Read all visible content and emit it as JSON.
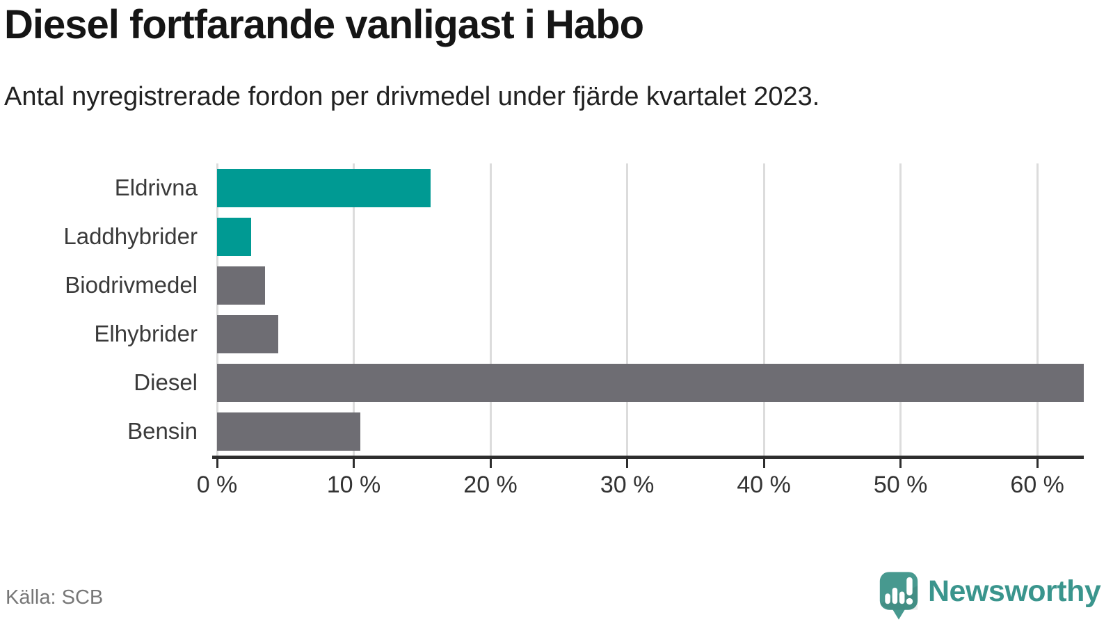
{
  "header": {
    "title": "Diesel fortfarande vanligast i Habo",
    "subtitle": "Antal nyregistrerade fordon per drivmedel under fjärde kvartalet 2023."
  },
  "footer": {
    "source": "Källa: SCB",
    "brand": "Newsworthy"
  },
  "colors": {
    "accent_teal": "#009a93",
    "neutral_gray": "#6e6d73",
    "axis": "#2e2e2e",
    "gridline": "#dcdcdc",
    "brand_teal": "#3a958d"
  },
  "icons": {
    "brand_logo": "newsworthy-speech-bubble-bar-chart-icon"
  },
  "chart_data": {
    "type": "bar",
    "orientation": "horizontal",
    "title": "Diesel fortfarande vanligast i Habo",
    "subtitle": "Antal nyregistrerade fordon per drivmedel under fjärde kvartalet 2023.",
    "xlabel": "",
    "ylabel": "",
    "unit": "%",
    "xlim": [
      0,
      63.4
    ],
    "grid": true,
    "legend": false,
    "categories": [
      "Eldrivna",
      "Laddhybrider",
      "Biodrivmedel",
      "Elhybrider",
      "Diesel",
      "Bensin"
    ],
    "values": [
      15.6,
      2.5,
      3.5,
      4.5,
      63.4,
      10.5
    ],
    "bar_colors": [
      "#009a93",
      "#009a93",
      "#6e6d73",
      "#6e6d73",
      "#6e6d73",
      "#6e6d73"
    ],
    "x_ticks": [
      {
        "value": 0,
        "label": "0 %"
      },
      {
        "value": 10,
        "label": "10 %"
      },
      {
        "value": 20,
        "label": "20 %"
      },
      {
        "value": 30,
        "label": "30 %"
      },
      {
        "value": 40,
        "label": "40 %"
      },
      {
        "value": 50,
        "label": "50 %"
      },
      {
        "value": 60,
        "label": "60 %"
      }
    ],
    "source": "Källa: SCB"
  }
}
